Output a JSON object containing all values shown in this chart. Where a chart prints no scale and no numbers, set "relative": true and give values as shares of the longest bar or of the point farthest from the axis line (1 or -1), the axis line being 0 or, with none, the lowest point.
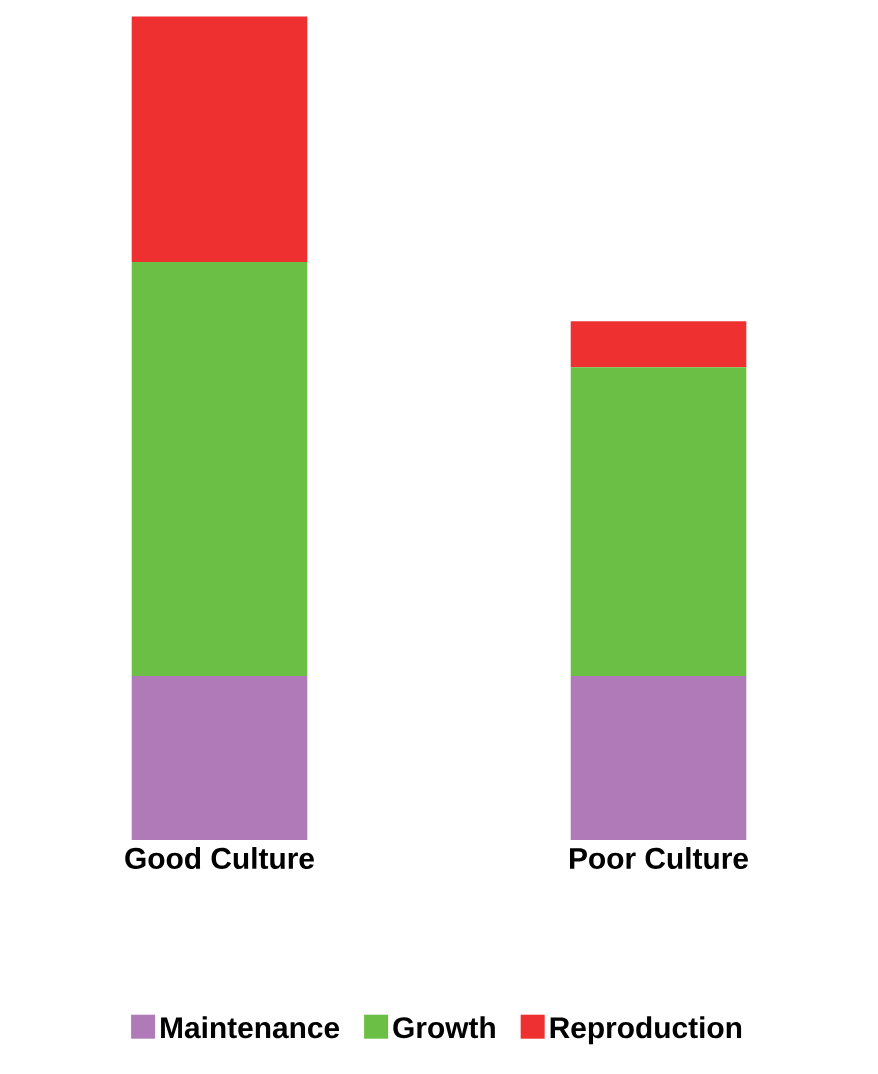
{
  "chart_data": {
    "type": "bar",
    "stacked": true,
    "relative": true,
    "legend": "bottom",
    "categories": [
      "Good Culture",
      "Poor Culture"
    ],
    "series": [
      {
        "name": "Maintenance",
        "color": "#b07ab8",
        "values": [
          0.199,
          0.199
        ]
      },
      {
        "name": "Growth",
        "color": "#6cbf45",
        "values": [
          0.503,
          0.375
        ]
      },
      {
        "name": "Reproduction",
        "color": "#ee3030",
        "values": [
          0.298,
          0.056
        ]
      }
    ]
  }
}
